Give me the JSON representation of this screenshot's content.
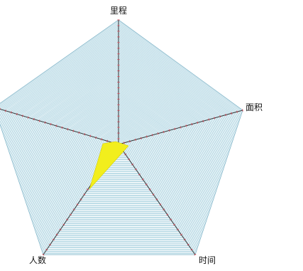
{
  "chart_data": {
    "type": "radar",
    "axes": [
      "里程",
      "面积",
      "时间",
      "人数",
      ""
    ],
    "grid": true,
    "colors": {
      "grid_line": "#8fc4d6",
      "axis_line": "#333333",
      "tick_mark": "#d54a5a",
      "data_fill": "#f2ee1d"
    }
  }
}
